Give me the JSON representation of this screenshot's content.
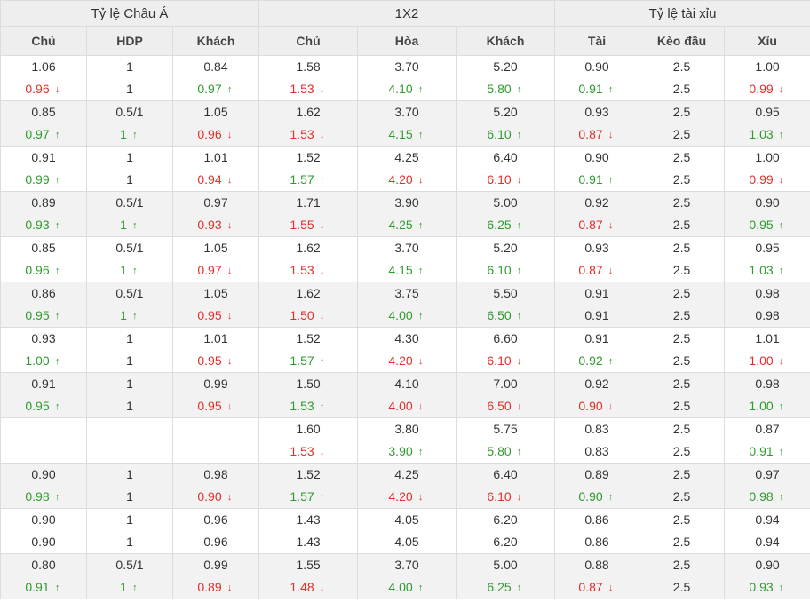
{
  "groups": [
    "Tỷ lệ Châu Á",
    "1X2",
    "Tỷ lệ tài xỉu"
  ],
  "columns": [
    "Chủ",
    "HDP",
    "Khách",
    "Chủ",
    "Hòa",
    "Khách",
    "Tài",
    "Kèo đầu",
    "Xỉu"
  ],
  "colors": {
    "up": "#2e9b2e",
    "down": "#e0302a",
    "header_bg": "#eeeeee",
    "alt_row_bg": "#f2f2f2"
  },
  "rows": [
    {
      "c": [
        [
          "1.06",
          "0.96"
        ],
        [
          "1",
          "1"
        ],
        [
          "0.84",
          "0.97"
        ],
        [
          "1.58",
          "1.53"
        ],
        [
          "3.70",
          "4.10"
        ],
        [
          "5.20",
          "5.80"
        ],
        [
          "0.90",
          "0.91"
        ],
        [
          "2.5",
          "2.5"
        ],
        [
          "1.00",
          "0.99"
        ]
      ],
      "t": [
        "down",
        "none",
        "up",
        "down",
        "up",
        "up",
        "up",
        "none",
        "down"
      ]
    },
    {
      "c": [
        [
          "0.85",
          "0.97"
        ],
        [
          "0.5/1",
          "1"
        ],
        [
          "1.05",
          "0.96"
        ],
        [
          "1.62",
          "1.53"
        ],
        [
          "3.70",
          "4.15"
        ],
        [
          "5.20",
          "6.10"
        ],
        [
          "0.93",
          "0.87"
        ],
        [
          "2.5",
          "2.5"
        ],
        [
          "0.95",
          "1.03"
        ]
      ],
      "t": [
        "up",
        "up",
        "down",
        "down",
        "up",
        "up",
        "down",
        "none",
        "up"
      ]
    },
    {
      "c": [
        [
          "0.91",
          "0.99"
        ],
        [
          "1",
          "1"
        ],
        [
          "1.01",
          "0.94"
        ],
        [
          "1.52",
          "1.57"
        ],
        [
          "4.25",
          "4.20"
        ],
        [
          "6.40",
          "6.10"
        ],
        [
          "0.90",
          "0.91"
        ],
        [
          "2.5",
          "2.5"
        ],
        [
          "1.00",
          "0.99"
        ]
      ],
      "t": [
        "up",
        "none",
        "down",
        "up",
        "down",
        "down",
        "up",
        "none",
        "down"
      ]
    },
    {
      "c": [
        [
          "0.89",
          "0.93"
        ],
        [
          "0.5/1",
          "1"
        ],
        [
          "0.97",
          "0.93"
        ],
        [
          "1.71",
          "1.55"
        ],
        [
          "3.90",
          "4.25"
        ],
        [
          "5.00",
          "6.25"
        ],
        [
          "0.92",
          "0.87"
        ],
        [
          "2.5",
          "2.5"
        ],
        [
          "0.90",
          "0.95"
        ]
      ],
      "t": [
        "up",
        "up",
        "down",
        "down",
        "up",
        "up",
        "down",
        "none",
        "up"
      ]
    },
    {
      "c": [
        [
          "0.85",
          "0.96"
        ],
        [
          "0.5/1",
          "1"
        ],
        [
          "1.05",
          "0.97"
        ],
        [
          "1.62",
          "1.53"
        ],
        [
          "3.70",
          "4.15"
        ],
        [
          "5.20",
          "6.10"
        ],
        [
          "0.93",
          "0.87"
        ],
        [
          "2.5",
          "2.5"
        ],
        [
          "0.95",
          "1.03"
        ]
      ],
      "t": [
        "up",
        "up",
        "down",
        "down",
        "up",
        "up",
        "down",
        "none",
        "up"
      ]
    },
    {
      "c": [
        [
          "0.86",
          "0.95"
        ],
        [
          "0.5/1",
          "1"
        ],
        [
          "1.05",
          "0.95"
        ],
        [
          "1.62",
          "1.50"
        ],
        [
          "3.75",
          "4.00"
        ],
        [
          "5.50",
          "6.50"
        ],
        [
          "0.91",
          "0.91"
        ],
        [
          "2.5",
          "2.5"
        ],
        [
          "0.98",
          "0.98"
        ]
      ],
      "t": [
        "up",
        "up",
        "down",
        "down",
        "up",
        "up",
        "none",
        "none",
        "none"
      ]
    },
    {
      "c": [
        [
          "0.93",
          "1.00"
        ],
        [
          "1",
          "1"
        ],
        [
          "1.01",
          "0.95"
        ],
        [
          "1.52",
          "1.57"
        ],
        [
          "4.30",
          "4.20"
        ],
        [
          "6.60",
          "6.10"
        ],
        [
          "0.91",
          "0.92"
        ],
        [
          "2.5",
          "2.5"
        ],
        [
          "1.01",
          "1.00"
        ]
      ],
      "t": [
        "up",
        "none",
        "down",
        "up",
        "down",
        "down",
        "up",
        "none",
        "down"
      ]
    },
    {
      "c": [
        [
          "0.91",
          "0.95"
        ],
        [
          "1",
          "1"
        ],
        [
          "0.99",
          "0.95"
        ],
        [
          "1.50",
          "1.53"
        ],
        [
          "4.10",
          "4.00"
        ],
        [
          "7.00",
          "6.50"
        ],
        [
          "0.92",
          "0.90"
        ],
        [
          "2.5",
          "2.5"
        ],
        [
          "0.98",
          "1.00"
        ]
      ],
      "t": [
        "up",
        "none",
        "down",
        "up",
        "down",
        "down",
        "down",
        "none",
        "up"
      ]
    },
    {
      "c": [
        [
          "",
          ""
        ],
        [
          "",
          ""
        ],
        [
          "",
          ""
        ],
        [
          "1.60",
          "1.53"
        ],
        [
          "3.80",
          "3.90"
        ],
        [
          "5.75",
          "5.80"
        ],
        [
          "0.83",
          "0.83"
        ],
        [
          "2.5",
          "2.5"
        ],
        [
          "0.87",
          "0.91"
        ]
      ],
      "t": [
        "none",
        "none",
        "none",
        "down",
        "up",
        "up",
        "none",
        "none",
        "up"
      ]
    },
    {
      "c": [
        [
          "0.90",
          "0.98"
        ],
        [
          "1",
          "1"
        ],
        [
          "0.98",
          "0.90"
        ],
        [
          "1.52",
          "1.57"
        ],
        [
          "4.25",
          "4.20"
        ],
        [
          "6.40",
          "6.10"
        ],
        [
          "0.89",
          "0.90"
        ],
        [
          "2.5",
          "2.5"
        ],
        [
          "0.97",
          "0.98"
        ]
      ],
      "t": [
        "up",
        "none",
        "down",
        "up",
        "down",
        "down",
        "up",
        "none",
        "up"
      ]
    },
    {
      "c": [
        [
          "0.90",
          "0.90"
        ],
        [
          "1",
          "1"
        ],
        [
          "0.96",
          "0.96"
        ],
        [
          "1.43",
          "1.43"
        ],
        [
          "4.05",
          "4.05"
        ],
        [
          "6.20",
          "6.20"
        ],
        [
          "0.86",
          "0.86"
        ],
        [
          "2.5",
          "2.5"
        ],
        [
          "0.94",
          "0.94"
        ]
      ],
      "t": [
        "none",
        "none",
        "none",
        "none",
        "none",
        "none",
        "none",
        "none",
        "none"
      ]
    },
    {
      "c": [
        [
          "0.80",
          "0.91"
        ],
        [
          "0.5/1",
          "1"
        ],
        [
          "0.99",
          "0.89"
        ],
        [
          "1.55",
          "1.48"
        ],
        [
          "3.70",
          "4.00"
        ],
        [
          "5.00",
          "6.25"
        ],
        [
          "0.88",
          "0.87"
        ],
        [
          "2.5",
          "2.5"
        ],
        [
          "0.90",
          "0.93"
        ]
      ],
      "t": [
        "up",
        "up",
        "down",
        "down",
        "up",
        "up",
        "down",
        "none",
        "up"
      ]
    }
  ]
}
